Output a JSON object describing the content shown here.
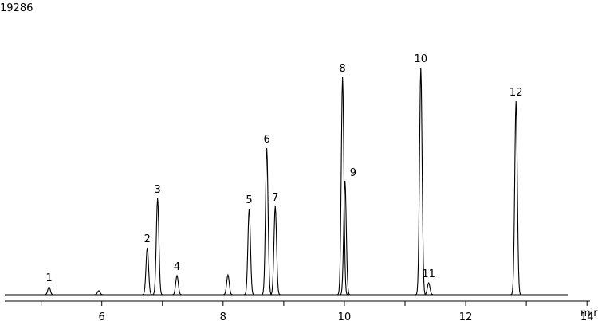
{
  "chart_data": {
    "type": "chromatogram",
    "title": "19286",
    "x_label": "min",
    "x": [
      5.13,
      5.95,
      6.75,
      6.92,
      7.24,
      8.08,
      8.43,
      8.72,
      8.86,
      9.97,
      10.01,
      11.26,
      11.39,
      12.83
    ],
    "values": [
      3.3,
      1.7,
      19.7,
      40.3,
      8,
      8.3,
      36,
      61.3,
      37,
      91,
      47.7,
      95,
      5,
      81
    ],
    "peak_labels": [
      "1",
      null,
      "2",
      "3",
      "4",
      null,
      "5",
      "6",
      "7",
      "8",
      "9",
      "10",
      "11",
      "12"
    ],
    "color": "#000000",
    "xlim": [
      4.4,
      14.05
    ],
    "ylim": [
      0,
      100
    ],
    "xticks": [
      6,
      8,
      10,
      12,
      14
    ],
    "xminorticks": [
      5,
      7,
      9,
      11,
      13
    ]
  }
}
